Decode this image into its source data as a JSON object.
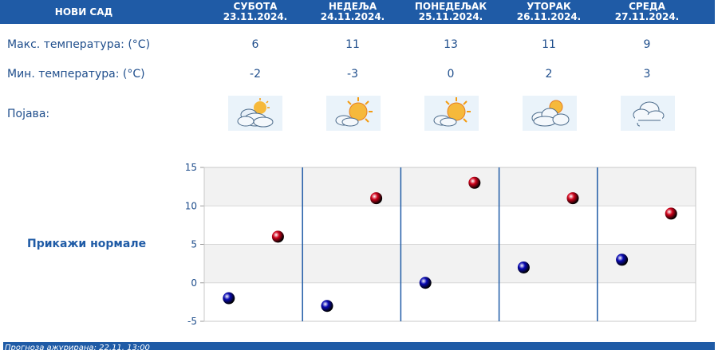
{
  "header": {
    "city": "НОВИ САД",
    "days": [
      {
        "name": "СУБОТА",
        "date": "23.11.2024."
      },
      {
        "name": "НЕДЕЉА",
        "date": "24.11.2024."
      },
      {
        "name": "ПОНЕДЕЉАК",
        "date": "25.11.2024."
      },
      {
        "name": "УТОРАК",
        "date": "26.11.2024."
      },
      {
        "name": "СРЕДА",
        "date": "27.11.2024."
      }
    ]
  },
  "rows": {
    "max_label": "Макс. температура: (°C)",
    "min_label": "Мин. температура: (°C)",
    "phenomenon_label": "Појава:"
  },
  "max_temps": [
    "6",
    "11",
    "13",
    "11",
    "9"
  ],
  "min_temps": [
    "-2",
    "-3",
    "0",
    "2",
    "3"
  ],
  "icons": [
    "partly-cloudy-icon",
    "mostly-sunny-icon",
    "mostly-sunny-icon",
    "sun-clouds-icon",
    "cloud-drizzle-icon"
  ],
  "show_normals": "Прикажи нормале",
  "footer": "Прогноза ажурирана: 22.11. 13:00",
  "colors": {
    "accent": "#1f5ba6",
    "max_marker": "#d0021b",
    "min_marker": "#0a0ab4"
  },
  "chart_data": {
    "type": "scatter",
    "categories": [
      "23.11.2024.",
      "24.11.2024.",
      "25.11.2024.",
      "26.11.2024.",
      "27.11.2024."
    ],
    "series": [
      {
        "values": [
          -2,
          -3,
          0,
          2,
          3
        ],
        "color": "#0a0ab4"
      },
      {
        "values": [
          6,
          11,
          13,
          11,
          9
        ],
        "color": "#d0021b"
      }
    ],
    "ylim": [
      -5,
      15
    ],
    "yticks": [
      15,
      10,
      5,
      0,
      -5
    ],
    "grid": true
  }
}
